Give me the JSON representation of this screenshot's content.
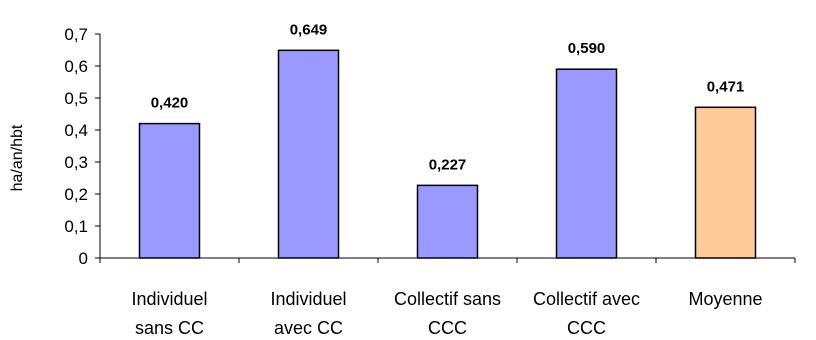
{
  "chart_data": {
    "type": "bar",
    "title": "",
    "xlabel": "",
    "ylabel": "ha/an/hbt",
    "categories": [
      [
        "Individuel",
        "sans CC"
      ],
      [
        "Individuel",
        "avec CC"
      ],
      [
        "Collectif sans",
        "CCC"
      ],
      [
        "Collectif avec",
        "CCC"
      ],
      [
        "Moyenne"
      ]
    ],
    "values": [
      0.42,
      0.649,
      0.227,
      0.59,
      0.471
    ],
    "value_labels": [
      "0,420",
      "0,649",
      "0,227",
      "0,590",
      "0,471"
    ],
    "bar_colors": [
      "#9999ff",
      "#9999ff",
      "#9999ff",
      "#9999ff",
      "#ffcc99"
    ],
    "ylim": [
      0,
      0.7
    ],
    "yticks": [
      0,
      0.1,
      0.2,
      0.3,
      0.4,
      0.5,
      0.6,
      0.7
    ],
    "ytick_labels": [
      "0",
      "0,1",
      "0,2",
      "0,3",
      "0,4",
      "0,5",
      "0,6",
      "0,7"
    ],
    "grid": false,
    "legend": "none"
  }
}
